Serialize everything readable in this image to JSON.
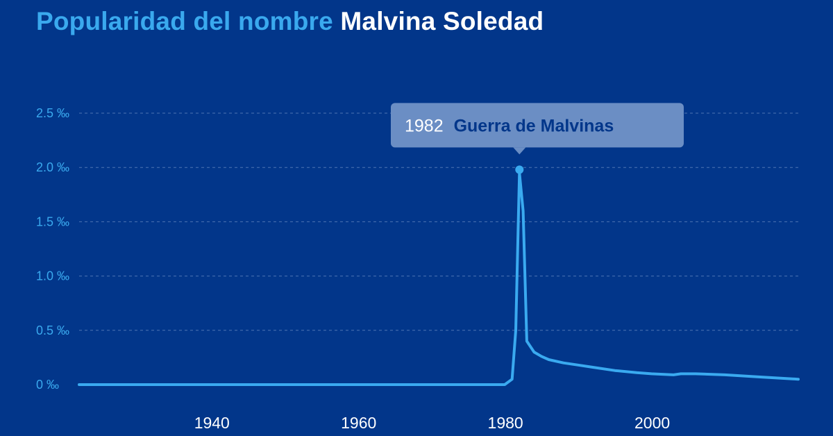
{
  "colors": {
    "background": "#02368a",
    "accent": "#3aa9ee",
    "line": "#3aaaf0",
    "grid": "#4e74b3",
    "title_name": "#ffffff",
    "tooltip_bg": "#6b8ec4",
    "tooltip_year": "#ffffff",
    "tooltip_text": "#02368a",
    "tick_text": "#ffffff"
  },
  "title": {
    "prefix": "Popularidad del nombre",
    "name": "Malvina Soledad"
  },
  "chart_data": {
    "type": "line",
    "title": "Popularidad del nombre Malvina Soledad",
    "xlabel": "",
    "ylabel": "",
    "xlim": [
      1922,
      2020
    ],
    "ylim": [
      0,
      2.5
    ],
    "y_ticks": [
      0,
      0.5,
      1.0,
      1.5,
      2.0,
      2.5
    ],
    "y_tick_labels": [
      "0 ‰",
      "0.5 ‰",
      "1.0 ‰",
      "1.5 ‰",
      "2.0 ‰",
      "2.5 ‰"
    ],
    "x_ticks": [
      1940,
      1960,
      1980,
      2000
    ],
    "x_tick_labels": [
      "1940",
      "1960",
      "1980",
      "2000"
    ],
    "grid": true,
    "legend": "none",
    "series": [
      {
        "x": [
          1922,
          1930,
          1940,
          1950,
          1960,
          1970,
          1980,
          1981,
          1981.5,
          1982,
          1982.5,
          1983,
          1984,
          1985,
          1986,
          1988,
          1990,
          1992,
          1995,
          1998,
          2000,
          2003,
          2004,
          2006,
          2010,
          2015,
          2020
        ],
        "y": [
          0,
          0,
          0,
          0,
          0,
          0,
          0,
          0.05,
          0.5,
          1.95,
          1.6,
          0.4,
          0.3,
          0.26,
          0.23,
          0.2,
          0.18,
          0.16,
          0.13,
          0.11,
          0.1,
          0.09,
          0.1,
          0.1,
          0.09,
          0.07,
          0.05
        ]
      }
    ],
    "annotation": {
      "x": 1982,
      "y": 1.98,
      "year_label": "1982",
      "event_label": "Guerra de Malvinas"
    }
  }
}
